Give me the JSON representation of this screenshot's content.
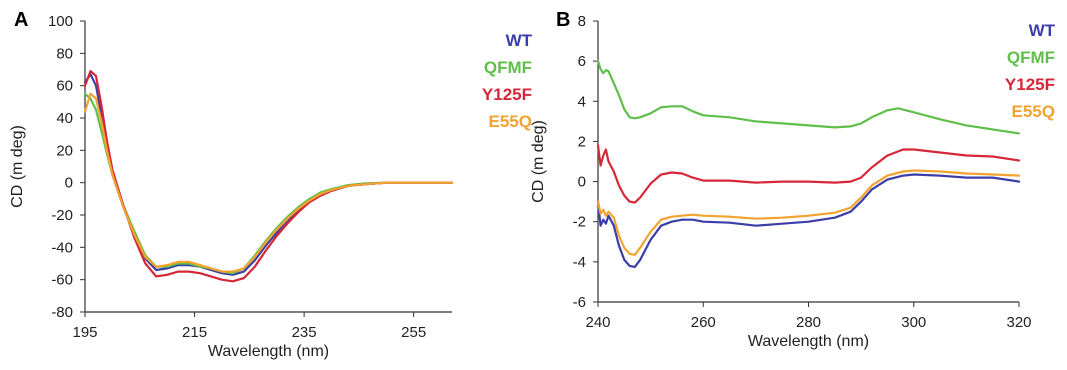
{
  "colors": {
    "WT": "#3b3ea8",
    "QFMF": "#5fbf4a",
    "Y125F": "#d62738",
    "E55Q": "#f2a22e",
    "axis": "#333333"
  },
  "chart_data": [
    {
      "panel_label": "A",
      "type": "line",
      "xlabel": "Wavelength (nm)",
      "ylabel": "CD (m deg)",
      "xlim": [
        195,
        262
      ],
      "ylim": [
        -80,
        100
      ],
      "xticks": [
        195,
        215,
        235,
        255
      ],
      "yticks": [
        -80,
        -60,
        -40,
        -20,
        0,
        20,
        40,
        60,
        80,
        100
      ],
      "legend_position": "right",
      "series": [
        {
          "name": "WT",
          "color": "#3b3ea8",
          "points": [
            [
              195,
              62
            ],
            [
              196,
              67
            ],
            [
              197,
              60
            ],
            [
              198,
              42
            ],
            [
              199,
              22
            ],
            [
              200,
              5
            ],
            [
              202,
              -15
            ],
            [
              204,
              -32
            ],
            [
              206,
              -47
            ],
            [
              208,
              -54
            ],
            [
              210,
              -53
            ],
            [
              212,
              -51
            ],
            [
              214,
              -51
            ],
            [
              216,
              -52
            ],
            [
              218,
              -54
            ],
            [
              220,
              -56
            ],
            [
              222,
              -57
            ],
            [
              224,
              -55
            ],
            [
              226,
              -48
            ],
            [
              228,
              -39
            ],
            [
              230,
              -31
            ],
            [
              232,
              -24
            ],
            [
              234,
              -17
            ],
            [
              236,
              -12
            ],
            [
              238,
              -8
            ],
            [
              240,
              -5
            ],
            [
              243,
              -2
            ],
            [
              246,
              -1
            ],
            [
              250,
              0
            ],
            [
              262,
              0
            ]
          ]
        },
        {
          "name": "QFMF",
          "color": "#5fbf4a",
          "points": [
            [
              195,
              55
            ],
            [
              196,
              52
            ],
            [
              197,
              45
            ],
            [
              198,
              32
            ],
            [
              199,
              18
            ],
            [
              200,
              5
            ],
            [
              202,
              -14
            ],
            [
              204,
              -30
            ],
            [
              206,
              -45
            ],
            [
              208,
              -52
            ],
            [
              210,
              -52
            ],
            [
              212,
              -50
            ],
            [
              214,
              -50
            ],
            [
              216,
              -52
            ],
            [
              218,
              -53
            ],
            [
              220,
              -55
            ],
            [
              222,
              -56
            ],
            [
              224,
              -53
            ],
            [
              226,
              -45
            ],
            [
              228,
              -36
            ],
            [
              230,
              -28
            ],
            [
              232,
              -21
            ],
            [
              234,
              -15
            ],
            [
              236,
              -10
            ],
            [
              238,
              -6
            ],
            [
              240,
              -4
            ],
            [
              243,
              -1.5
            ],
            [
              246,
              -0.5
            ],
            [
              250,
              0
            ],
            [
              262,
              0
            ]
          ]
        },
        {
          "name": "Y125F",
          "color": "#d62738",
          "points": [
            [
              195,
              60
            ],
            [
              196,
              69
            ],
            [
              197,
              66
            ],
            [
              198,
              48
            ],
            [
              199,
              26
            ],
            [
              200,
              8
            ],
            [
              202,
              -14
            ],
            [
              204,
              -34
            ],
            [
              206,
              -50
            ],
            [
              208,
              -58
            ],
            [
              210,
              -57
            ],
            [
              212,
              -55
            ],
            [
              214,
              -55
            ],
            [
              216,
              -56
            ],
            [
              218,
              -58
            ],
            [
              220,
              -60
            ],
            [
              222,
              -61
            ],
            [
              224,
              -59
            ],
            [
              226,
              -52
            ],
            [
              228,
              -42
            ],
            [
              230,
              -33
            ],
            [
              232,
              -25
            ],
            [
              234,
              -18
            ],
            [
              236,
              -12
            ],
            [
              238,
              -8
            ],
            [
              240,
              -5
            ],
            [
              243,
              -2
            ],
            [
              246,
              -1
            ],
            [
              250,
              0
            ],
            [
              262,
              0
            ]
          ]
        },
        {
          "name": "E55Q",
          "color": "#f2a22e",
          "points": [
            [
              195,
              44
            ],
            [
              196,
              55
            ],
            [
              197,
              52
            ],
            [
              198,
              38
            ],
            [
              199,
              20
            ],
            [
              200,
              5
            ],
            [
              202,
              -15
            ],
            [
              204,
              -32
            ],
            [
              206,
              -46
            ],
            [
              208,
              -52
            ],
            [
              210,
              -51
            ],
            [
              212,
              -49
            ],
            [
              214,
              -49
            ],
            [
              216,
              -51
            ],
            [
              218,
              -53
            ],
            [
              220,
              -55
            ],
            [
              222,
              -55
            ],
            [
              224,
              -53
            ],
            [
              226,
              -46
            ],
            [
              228,
              -37
            ],
            [
              230,
              -29
            ],
            [
              232,
              -22
            ],
            [
              234,
              -16
            ],
            [
              236,
              -11
            ],
            [
              238,
              -7
            ],
            [
              240,
              -4.5
            ],
            [
              243,
              -2
            ],
            [
              246,
              -1
            ],
            [
              250,
              0
            ],
            [
              262,
              0
            ]
          ]
        }
      ]
    },
    {
      "panel_label": "B",
      "type": "line",
      "xlabel": "Wavelength (nm)",
      "ylabel": "CD (m deg)",
      "xlim": [
        240,
        320
      ],
      "ylim": [
        -6,
        8
      ],
      "xticks": [
        240,
        260,
        280,
        300,
        320
      ],
      "yticks": [
        -6,
        -4,
        -2,
        0,
        2,
        4,
        6,
        8
      ],
      "legend_position": "right",
      "series": [
        {
          "name": "WT",
          "color": "#3b3ea8",
          "points": [
            [
              240,
              -1.0
            ],
            [
              240.5,
              -2.2
            ],
            [
              241,
              -1.9
            ],
            [
              241.5,
              -2.1
            ],
            [
              242,
              -1.7
            ],
            [
              243,
              -2.2
            ],
            [
              244,
              -3.2
            ],
            [
              245,
              -3.9
            ],
            [
              246,
              -4.2
            ],
            [
              247,
              -4.25
            ],
            [
              248,
              -3.9
            ],
            [
              250,
              -2.9
            ],
            [
              252,
              -2.2
            ],
            [
              254,
              -2.0
            ],
            [
              256,
              -1.9
            ],
            [
              258,
              -1.9
            ],
            [
              260,
              -2.0
            ],
            [
              265,
              -2.05
            ],
            [
              270,
              -2.2
            ],
            [
              275,
              -2.1
            ],
            [
              280,
              -2.0
            ],
            [
              285,
              -1.8
            ],
            [
              288,
              -1.5
            ],
            [
              290,
              -1.0
            ],
            [
              292,
              -0.4
            ],
            [
              295,
              0.1
            ],
            [
              298,
              0.3
            ],
            [
              300,
              0.35
            ],
            [
              305,
              0.3
            ],
            [
              310,
              0.2
            ],
            [
              315,
              0.2
            ],
            [
              320,
              0.0
            ]
          ]
        },
        {
          "name": "QFMF",
          "color": "#5fbf4a",
          "points": [
            [
              240,
              6.0
            ],
            [
              240.5,
              5.6
            ],
            [
              241,
              5.4
            ],
            [
              241.5,
              5.55
            ],
            [
              242,
              5.5
            ],
            [
              243,
              4.9
            ],
            [
              244,
              4.3
            ],
            [
              245,
              3.6
            ],
            [
              246,
              3.2
            ],
            [
              247,
              3.15
            ],
            [
              248,
              3.2
            ],
            [
              250,
              3.4
            ],
            [
              252,
              3.7
            ],
            [
              254,
              3.75
            ],
            [
              256,
              3.75
            ],
            [
              258,
              3.5
            ],
            [
              260,
              3.3
            ],
            [
              265,
              3.2
            ],
            [
              270,
              3.0
            ],
            [
              275,
              2.9
            ],
            [
              280,
              2.8
            ],
            [
              285,
              2.7
            ],
            [
              288,
              2.75
            ],
            [
              290,
              2.9
            ],
            [
              292,
              3.2
            ],
            [
              295,
              3.55
            ],
            [
              297,
              3.65
            ],
            [
              300,
              3.45
            ],
            [
              305,
              3.1
            ],
            [
              310,
              2.8
            ],
            [
              315,
              2.6
            ],
            [
              320,
              2.4
            ]
          ]
        },
        {
          "name": "Y125F",
          "color": "#d62738",
          "points": [
            [
              240,
              1.8
            ],
            [
              240.5,
              0.8
            ],
            [
              241,
              1.3
            ],
            [
              241.5,
              1.6
            ],
            [
              242,
              1.0
            ],
            [
              243,
              0.5
            ],
            [
              244,
              -0.2
            ],
            [
              245,
              -0.7
            ],
            [
              246,
              -1.0
            ],
            [
              247,
              -1.05
            ],
            [
              248,
              -0.8
            ],
            [
              250,
              -0.1
            ],
            [
              252,
              0.35
            ],
            [
              254,
              0.45
            ],
            [
              256,
              0.4
            ],
            [
              258,
              0.2
            ],
            [
              260,
              0.05
            ],
            [
              265,
              0.05
            ],
            [
              270,
              -0.05
            ],
            [
              275,
              0.0
            ],
            [
              280,
              0.0
            ],
            [
              285,
              -0.05
            ],
            [
              288,
              0.0
            ],
            [
              290,
              0.2
            ],
            [
              292,
              0.7
            ],
            [
              295,
              1.3
            ],
            [
              298,
              1.6
            ],
            [
              300,
              1.6
            ],
            [
              305,
              1.45
            ],
            [
              310,
              1.3
            ],
            [
              315,
              1.25
            ],
            [
              320,
              1.05
            ]
          ]
        },
        {
          "name": "E55Q",
          "color": "#f2a22e",
          "points": [
            [
              240,
              -1.0
            ],
            [
              240.5,
              -1.6
            ],
            [
              241,
              -1.4
            ],
            [
              241.5,
              -1.7
            ],
            [
              242,
              -1.5
            ],
            [
              243,
              -1.8
            ],
            [
              244,
              -2.7
            ],
            [
              245,
              -3.3
            ],
            [
              246,
              -3.6
            ],
            [
              247,
              -3.65
            ],
            [
              248,
              -3.3
            ],
            [
              250,
              -2.5
            ],
            [
              252,
              -1.9
            ],
            [
              254,
              -1.75
            ],
            [
              256,
              -1.7
            ],
            [
              258,
              -1.65
            ],
            [
              260,
              -1.7
            ],
            [
              265,
              -1.75
            ],
            [
              270,
              -1.85
            ],
            [
              275,
              -1.8
            ],
            [
              280,
              -1.7
            ],
            [
              285,
              -1.55
            ],
            [
              288,
              -1.3
            ],
            [
              290,
              -0.8
            ],
            [
              292,
              -0.2
            ],
            [
              295,
              0.3
            ],
            [
              298,
              0.5
            ],
            [
              300,
              0.55
            ],
            [
              305,
              0.5
            ],
            [
              310,
              0.4
            ],
            [
              315,
              0.35
            ],
            [
              320,
              0.3
            ]
          ]
        }
      ]
    }
  ]
}
